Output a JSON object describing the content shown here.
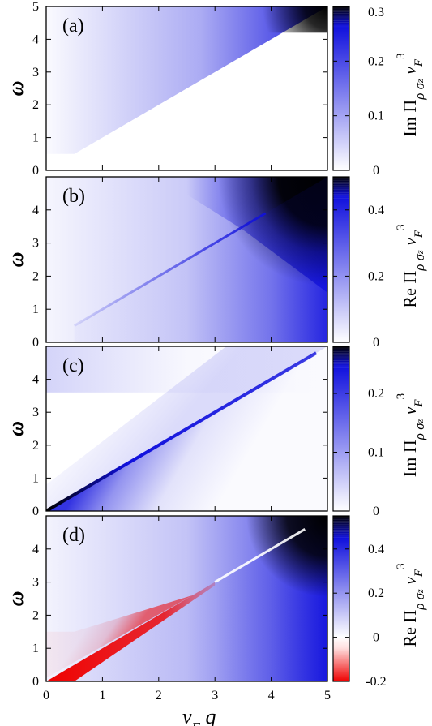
{
  "figure": {
    "xlabel": {
      "main": "v",
      "sub": "F",
      "tail": " q"
    }
  },
  "colors": {
    "positive": "#1010dd",
    "max": "#000000",
    "zero": "#ffffff",
    "negative": "#ee0000"
  },
  "chart_data": [
    {
      "type": "heatmap",
      "panel_label": "(a)",
      "xlabel": "",
      "ylabel": "ω",
      "xlim": [
        0,
        5
      ],
      "ylim": [
        0,
        5
      ],
      "xticks": [],
      "yticks": [
        "0",
        "1",
        "2",
        "3",
        "4",
        "5"
      ],
      "colorbar": {
        "label_parts": [
          "Im Π",
          "ρ σ",
          "z",
          " v",
          "F",
          "3"
        ],
        "range": [
          0,
          0.3
        ],
        "ticks": [
          "0",
          "0.1",
          "0.2",
          "0.3"
        ],
        "tick_values": [
          0,
          0.1,
          0.2,
          0.3
        ]
      },
      "features": {
        "zero_region": "ω < v_F q (below diagonal)",
        "max_region": "top-right corner near ω = 5, v_F q = 5"
      }
    },
    {
      "type": "heatmap",
      "panel_label": "(b)",
      "xlabel": "",
      "ylabel": "ω",
      "xlim": [
        0,
        5
      ],
      "ylim": [
        0,
        5
      ],
      "xticks": [],
      "yticks": [
        "0",
        "1",
        "2",
        "3",
        "4"
      ],
      "colorbar": {
        "label_parts": [
          "Re Π",
          "ρ σ",
          "z",
          " v",
          "F",
          "3"
        ],
        "range": [
          0,
          0.5
        ],
        "ticks": [
          "0",
          "0.2",
          "0.4"
        ],
        "tick_values": [
          0,
          0.2,
          0.4
        ]
      },
      "features": {
        "ridge": "along ω = v_F q",
        "max_region": "top-right above v_F q ≈ 3.5"
      }
    },
    {
      "type": "heatmap",
      "panel_label": "(c)",
      "xlabel": "",
      "ylabel": "ω",
      "xlim": [
        0,
        5
      ],
      "ylim": [
        0,
        5
      ],
      "xticks": [],
      "yticks": [
        "0",
        "1",
        "2",
        "3",
        "4"
      ],
      "colorbar": {
        "label_parts": [
          "Im Π",
          "ρ σ",
          "z",
          " v",
          "F",
          "3"
        ],
        "range": [
          0,
          0.28
        ],
        "ticks": [
          "0",
          "0.1",
          "0.2"
        ],
        "tick_values": [
          0,
          0.1,
          0.2
        ]
      },
      "features": {
        "ridge": "strong just below ω = v_F q, brightest near origin",
        "zero_region": "ω > v_F q at small q"
      }
    },
    {
      "type": "heatmap",
      "panel_label": "(d)",
      "xlabel": "v_F q",
      "ylabel": "ω",
      "xlim": [
        0,
        5
      ],
      "ylim": [
        0,
        5
      ],
      "xticks": [
        "0",
        "1",
        "2",
        "3",
        "4",
        "5"
      ],
      "yticks": [
        "0",
        "1",
        "2",
        "3",
        "4"
      ],
      "colorbar": {
        "label_parts": [
          "Re Π",
          "ρ σ",
          "z",
          " v",
          "F",
          "3"
        ],
        "range": [
          -0.2,
          0.55
        ],
        "ticks": [
          "-0.2",
          "0",
          "0.2",
          "0.4"
        ],
        "tick_values": [
          -0.2,
          0,
          0.2,
          0.4
        ]
      },
      "features": {
        "negative_region": "red below ω = v_F q for v_F q < 3 and ω < 1.5",
        "max_region": "top-right corner"
      }
    }
  ]
}
